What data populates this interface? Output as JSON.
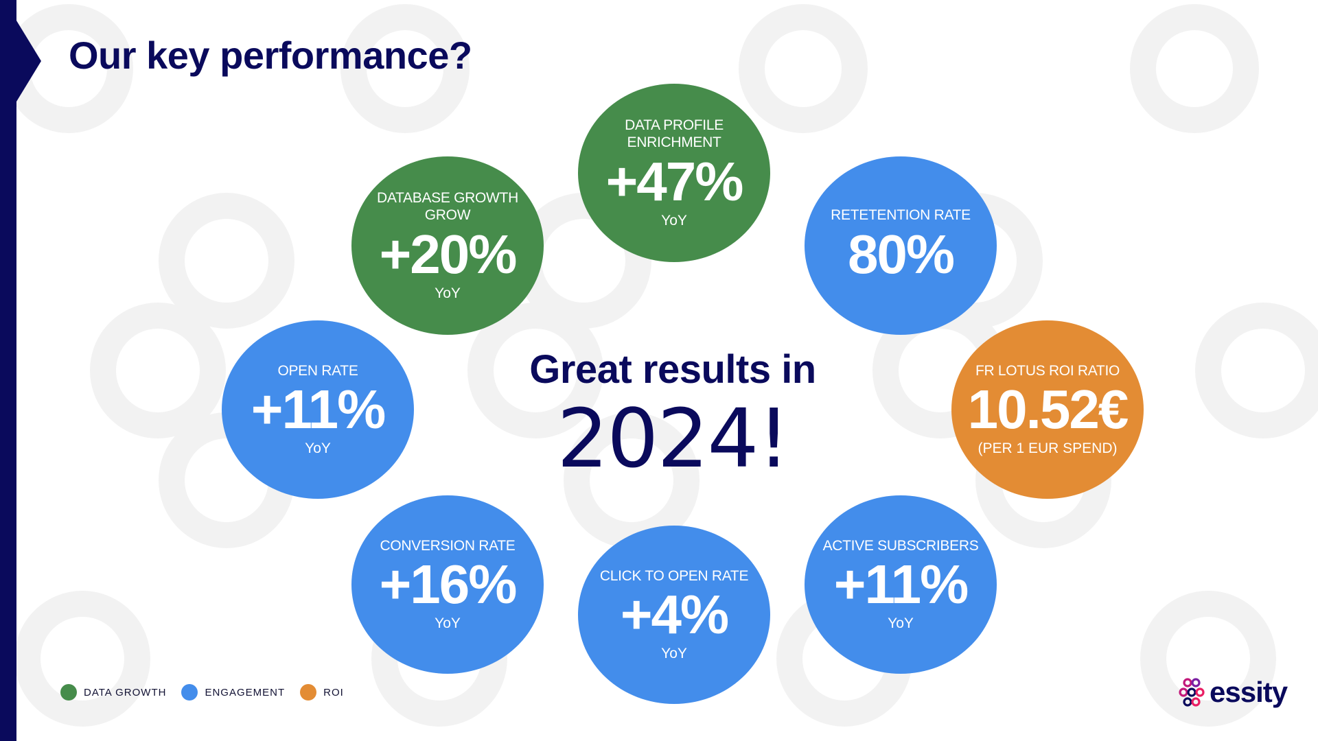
{
  "title": "Our key performance?",
  "center": {
    "heading": "Great results in",
    "year": "2024!"
  },
  "kpis": [
    {
      "label": "DATA PROFILE ENRICHMENT",
      "value": "+47%",
      "sub": "YoY",
      "category": "data-growth"
    },
    {
      "label": "RETETENTION RATE",
      "value": "80%",
      "sub": "",
      "category": "engagement"
    },
    {
      "label": "FR LOTUS ROI RATIO",
      "value": "10.52€",
      "sub": "(PER 1 EUR SPEND)",
      "category": "roi"
    },
    {
      "label": "ACTIVE SUBSCRIBERS",
      "value": "+11%",
      "sub": "YoY",
      "category": "engagement"
    },
    {
      "label": "CLICK TO OPEN RATE",
      "value": "+4%",
      "sub": "YoY",
      "category": "engagement"
    },
    {
      "label": "CONVERSION RATE",
      "value": "+16%",
      "sub": "YoY",
      "category": "engagement"
    },
    {
      "label": "OPEN RATE",
      "value": "+11%",
      "sub": "YoY",
      "category": "engagement"
    },
    {
      "label": "DATABASE GROWTH GROW",
      "value": "+20%",
      "sub": "YoY",
      "category": "data-growth"
    }
  ],
  "legend": [
    {
      "label": "DATA GROWTH",
      "color": "#468c4b"
    },
    {
      "label": "ENGAGEMENT",
      "color": "#438deb"
    },
    {
      "label": "ROI",
      "color": "#e38c34"
    }
  ],
  "colors": {
    "navy": "#0a0a5c",
    "green": "#468c4b",
    "blue": "#438deb",
    "orange": "#e38c34"
  },
  "brand": {
    "name": "essity"
  }
}
